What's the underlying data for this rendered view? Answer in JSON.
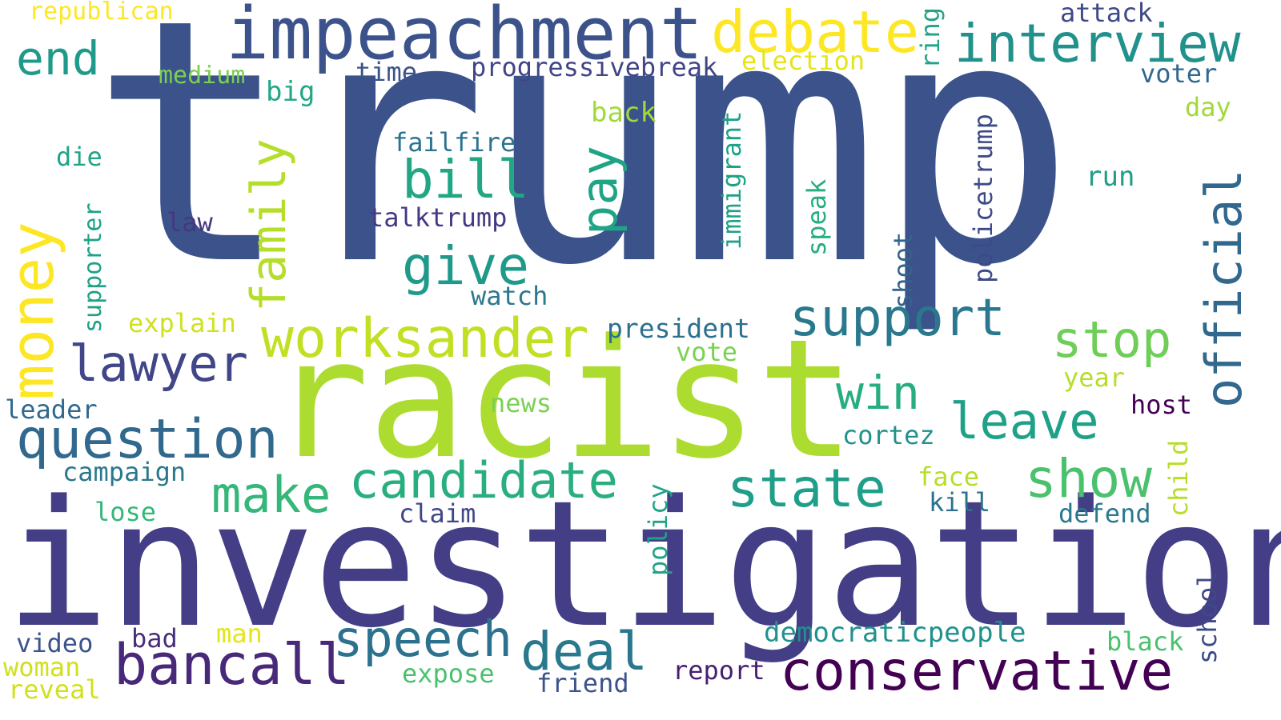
{
  "words": [
    {
      "text": "trump",
      "color": "#3b528b"
    },
    {
      "text": "investigation",
      "color": "#433e85"
    },
    {
      "text": "racist",
      "color": "#addc30"
    },
    {
      "text": "impeachment",
      "color": "#3b528b"
    },
    {
      "text": "debate",
      "color": "#fde725"
    },
    {
      "text": "interview",
      "color": "#21918c"
    },
    {
      "text": "worksander",
      "color": "#c2df23"
    },
    {
      "text": "money",
      "color": "#fde725"
    },
    {
      "text": "question",
      "color": "#31688e"
    },
    {
      "text": "conservative",
      "color": "#440154"
    },
    {
      "text": "bancall",
      "color": "#482878"
    },
    {
      "text": "candidate",
      "color": "#29af7f"
    },
    {
      "text": "state",
      "color": "#1f9e89"
    },
    {
      "text": "show",
      "color": "#4ac16d"
    },
    {
      "text": "support",
      "color": "#2a788e"
    },
    {
      "text": "lawyer",
      "color": "#404688"
    },
    {
      "text": "official",
      "color": "#31688e"
    },
    {
      "text": "family",
      "color": "#b5de2b"
    },
    {
      "text": "speech",
      "color": "#2c728e"
    },
    {
      "text": "deal",
      "color": "#2a788e"
    },
    {
      "text": "stop",
      "color": "#6ece58"
    },
    {
      "text": "leave",
      "color": "#1fa188"
    },
    {
      "text": "bill",
      "color": "#22a785"
    },
    {
      "text": "give",
      "color": "#1f9a8a"
    },
    {
      "text": "make",
      "color": "#35b779"
    },
    {
      "text": "pay",
      "color": "#20a486"
    },
    {
      "text": "win",
      "color": "#27ad81"
    },
    {
      "text": "end",
      "color": "#1f9a8a"
    },
    {
      "text": "progressivebreak",
      "color": "#414487"
    },
    {
      "text": "president",
      "color": "#2d708e"
    },
    {
      "text": "democraticpeople",
      "color": "#21918c"
    },
    {
      "text": "policetrump",
      "color": "#3e4989"
    },
    {
      "text": "talktrump",
      "color": "#443983"
    },
    {
      "text": "failfire",
      "color": "#2c728e"
    },
    {
      "text": "immigrant",
      "color": "#1fa088"
    },
    {
      "text": "republican",
      "color": "#fde725"
    },
    {
      "text": "medium",
      "color": "#7ad151"
    },
    {
      "text": "election",
      "color": "#e5e419"
    },
    {
      "text": "time",
      "color": "#3b528b"
    },
    {
      "text": "attack",
      "color": "#3e4989"
    },
    {
      "text": "voter",
      "color": "#31688e"
    },
    {
      "text": "ring",
      "color": "#20a386"
    },
    {
      "text": "big",
      "color": "#22a785"
    },
    {
      "text": "back",
      "color": "#a0da39"
    },
    {
      "text": "day",
      "color": "#a0da39"
    },
    {
      "text": "run",
      "color": "#1f9e89"
    },
    {
      "text": "die",
      "color": "#20a386"
    },
    {
      "text": "supporter",
      "color": "#1fa188"
    },
    {
      "text": "law",
      "color": "#453781"
    },
    {
      "text": "speak",
      "color": "#26ad81"
    },
    {
      "text": "shoot",
      "color": "#33638d"
    },
    {
      "text": "watch",
      "color": "#2a788e"
    },
    {
      "text": "explain",
      "color": "#d0e11c"
    },
    {
      "text": "vote",
      "color": "#7ad151"
    },
    {
      "text": "year",
      "color": "#b5de2b"
    },
    {
      "text": "host",
      "color": "#440154"
    },
    {
      "text": "news",
      "color": "#7ad151"
    },
    {
      "text": "leader",
      "color": "#31688e"
    },
    {
      "text": "cortez",
      "color": "#21918c"
    },
    {
      "text": "campaign",
      "color": "#2a788e"
    },
    {
      "text": "face",
      "color": "#b5de2b"
    },
    {
      "text": "child",
      "color": "#b5de2b"
    },
    {
      "text": "lose",
      "color": "#35b779"
    },
    {
      "text": "claim",
      "color": "#404688"
    },
    {
      "text": "kill",
      "color": "#2c728e"
    },
    {
      "text": "defend",
      "color": "#2a788e"
    },
    {
      "text": "policy",
      "color": "#20a386"
    },
    {
      "text": "school",
      "color": "#3e4989"
    },
    {
      "text": "video",
      "color": "#3b528b"
    },
    {
      "text": "bad",
      "color": "#472d7b"
    },
    {
      "text": "man",
      "color": "#e5e419"
    },
    {
      "text": "woman",
      "color": "#d0e11c"
    },
    {
      "text": "reveal",
      "color": "#d0e11c"
    },
    {
      "text": "expose",
      "color": "#4ac16d"
    },
    {
      "text": "friend",
      "color": "#3b528b"
    },
    {
      "text": "report",
      "color": "#481f70"
    },
    {
      "text": "black",
      "color": "#4ac16d"
    }
  ]
}
